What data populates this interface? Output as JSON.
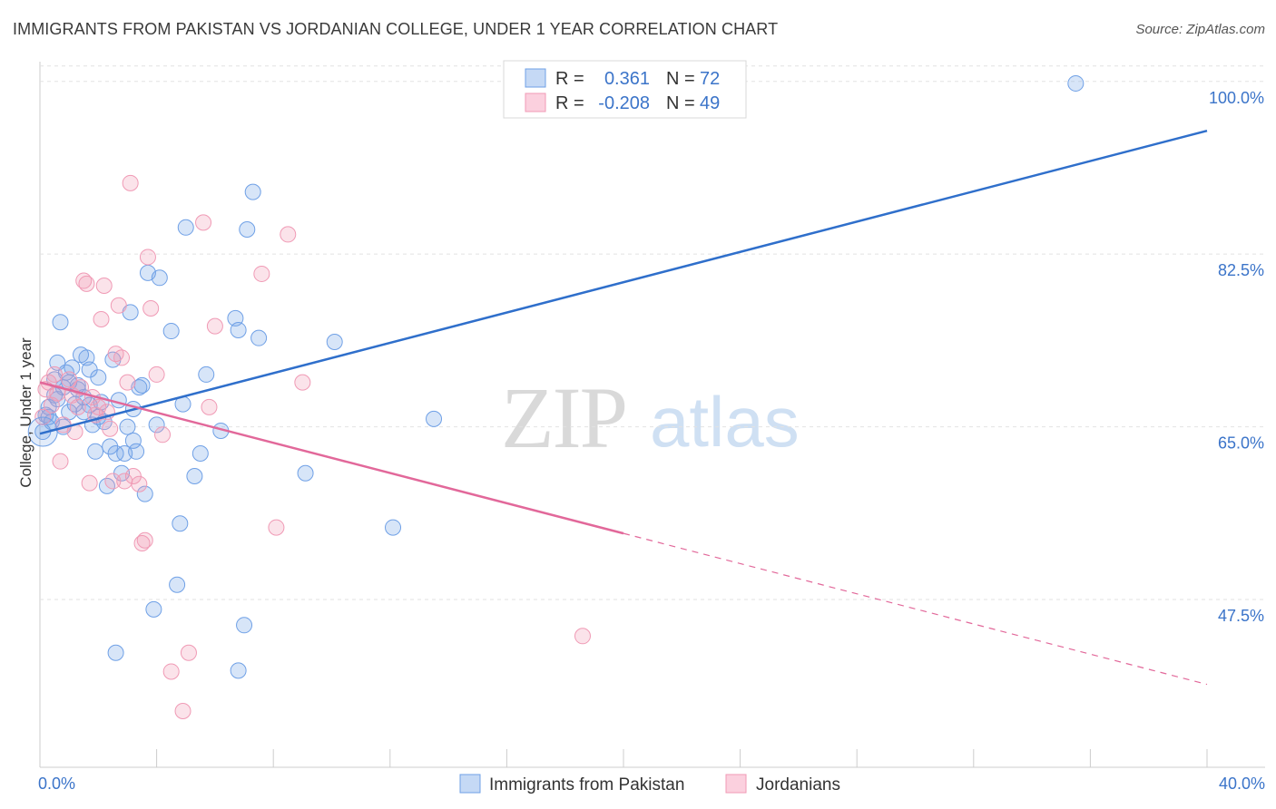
{
  "title": "IMMIGRANTS FROM PAKISTAN VS JORDANIAN COLLEGE, UNDER 1 YEAR CORRELATION CHART",
  "source": "Source: ZipAtlas.com",
  "watermark": {
    "zip": "ZIP",
    "atlas": "atlas"
  },
  "chart_data": {
    "type": "scatter",
    "xlabel": "",
    "ylabel": "College, Under 1 year",
    "xlim": [
      0,
      40
    ],
    "ylim": [
      30.5,
      102
    ],
    "x_tick_labels": [
      "0.0%",
      "40.0%"
    ],
    "y_ticks": [
      47.5,
      65.0,
      82.5,
      100.0
    ],
    "y_tick_labels": [
      "47.5%",
      "65.0%",
      "82.5%",
      "100.0%"
    ],
    "grid": true,
    "legend_position": "top-center",
    "colors": {
      "pakistan": "#6fa0e6",
      "jordanians": "#f09ab5",
      "blue_line": "#2f6fcb",
      "pink_line": "#e2689a"
    },
    "series": [
      {
        "name": "Immigrants from Pakistan",
        "r_label": "R =",
        "r_value": "0.361",
        "n_label": "N =",
        "n_value": "72",
        "trend": {
          "x0": 0,
          "y0": 64.3,
          "x1": 40,
          "y1": 95.0
        },
        "points": [
          [
            0.1,
            64.5
          ],
          [
            0.2,
            66.2
          ],
          [
            0.3,
            67.0
          ],
          [
            0.4,
            65.5
          ],
          [
            0.5,
            69.8
          ],
          [
            0.5,
            68.2
          ],
          [
            0.6,
            71.5
          ],
          [
            0.7,
            75.6
          ],
          [
            0.8,
            69.0
          ],
          [
            0.9,
            70.5
          ],
          [
            1.0,
            66.5
          ],
          [
            1.1,
            71.0
          ],
          [
            1.2,
            67.3
          ],
          [
            1.3,
            69.2
          ],
          [
            1.4,
            72.3
          ],
          [
            1.5,
            68.0
          ],
          [
            1.6,
            72.0
          ],
          [
            1.7,
            70.8
          ],
          [
            1.8,
            65.2
          ],
          [
            1.9,
            62.5
          ],
          [
            2.0,
            66.0
          ],
          [
            2.1,
            67.5
          ],
          [
            2.2,
            65.5
          ],
          [
            2.3,
            59.0
          ],
          [
            2.5,
            71.8
          ],
          [
            2.6,
            62.3
          ],
          [
            2.7,
            67.7
          ],
          [
            2.8,
            60.3
          ],
          [
            2.9,
            62.3
          ],
          [
            3.0,
            65.0
          ],
          [
            3.1,
            76.6
          ],
          [
            3.2,
            63.6
          ],
          [
            3.3,
            62.5
          ],
          [
            3.4,
            69.0
          ],
          [
            3.5,
            69.2
          ],
          [
            3.6,
            58.2
          ],
          [
            3.7,
            80.6
          ],
          [
            4.1,
            80.1
          ],
          [
            4.0,
            65.2
          ],
          [
            4.5,
            74.7
          ],
          [
            4.8,
            55.2
          ],
          [
            4.9,
            67.3
          ],
          [
            5.0,
            85.2
          ],
          [
            5.3,
            60.0
          ],
          [
            5.5,
            62.3
          ],
          [
            5.7,
            70.3
          ],
          [
            6.2,
            64.6
          ],
          [
            6.7,
            76.0
          ],
          [
            6.8,
            74.8
          ],
          [
            7.1,
            85.0
          ],
          [
            7.3,
            88.8
          ],
          [
            7.5,
            74.0
          ],
          [
            6.8,
            40.3
          ],
          [
            7.0,
            44.9
          ],
          [
            4.7,
            49.0
          ],
          [
            3.9,
            46.5
          ],
          [
            2.6,
            42.1
          ],
          [
            9.1,
            60.3
          ],
          [
            10.1,
            73.6
          ],
          [
            12.1,
            54.8
          ],
          [
            13.5,
            65.8
          ],
          [
            35.5,
            99.8
          ],
          [
            1.7,
            67.2
          ],
          [
            1.3,
            68.8
          ],
          [
            0.8,
            65.0
          ],
          [
            0.6,
            67.8
          ],
          [
            2.0,
            70.0
          ],
          [
            1.0,
            69.5
          ],
          [
            3.2,
            66.8
          ],
          [
            2.4,
            63.0
          ],
          [
            0.3,
            66.0
          ],
          [
            1.5,
            66.5
          ]
        ]
      },
      {
        "name": "Jordanians",
        "r_label": "R =",
        "r_value": "-0.208",
        "n_label": "N =",
        "n_value": "49",
        "trend": {
          "x0": 0,
          "y0": 69.5,
          "x1": 20,
          "y1": 54.2,
          "dash_x1": 40,
          "dash_y1": 38.9
        },
        "points": [
          [
            0.1,
            66.0
          ],
          [
            0.2,
            68.8
          ],
          [
            0.3,
            69.5
          ],
          [
            0.4,
            67.2
          ],
          [
            0.5,
            70.3
          ],
          [
            0.6,
            68.4
          ],
          [
            0.7,
            61.5
          ],
          [
            0.8,
            65.2
          ],
          [
            1.0,
            69.8
          ],
          [
            1.1,
            68.2
          ],
          [
            1.2,
            64.5
          ],
          [
            1.3,
            67.0
          ],
          [
            1.4,
            69.0
          ],
          [
            1.5,
            79.8
          ],
          [
            1.6,
            79.5
          ],
          [
            1.7,
            59.3
          ],
          [
            1.8,
            68.0
          ],
          [
            1.9,
            66.2
          ],
          [
            2.0,
            67.0
          ],
          [
            2.1,
            75.9
          ],
          [
            2.2,
            79.3
          ],
          [
            2.3,
            66.5
          ],
          [
            2.4,
            64.8
          ],
          [
            2.5,
            59.5
          ],
          [
            2.6,
            72.4
          ],
          [
            2.7,
            77.3
          ],
          [
            2.8,
            72.0
          ],
          [
            2.9,
            59.5
          ],
          [
            3.0,
            69.5
          ],
          [
            3.1,
            89.7
          ],
          [
            3.2,
            60.0
          ],
          [
            3.4,
            59.2
          ],
          [
            3.5,
            53.2
          ],
          [
            3.6,
            53.5
          ],
          [
            3.7,
            82.2
          ],
          [
            3.8,
            77.0
          ],
          [
            4.0,
            70.3
          ],
          [
            4.2,
            64.2
          ],
          [
            4.5,
            40.2
          ],
          [
            4.9,
            36.2
          ],
          [
            5.1,
            42.1
          ],
          [
            5.6,
            85.7
          ],
          [
            5.8,
            67.0
          ],
          [
            6.0,
            75.2
          ],
          [
            7.6,
            80.5
          ],
          [
            8.1,
            54.8
          ],
          [
            8.5,
            84.5
          ],
          [
            9.0,
            69.5
          ],
          [
            18.6,
            43.8
          ]
        ]
      }
    ]
  }
}
